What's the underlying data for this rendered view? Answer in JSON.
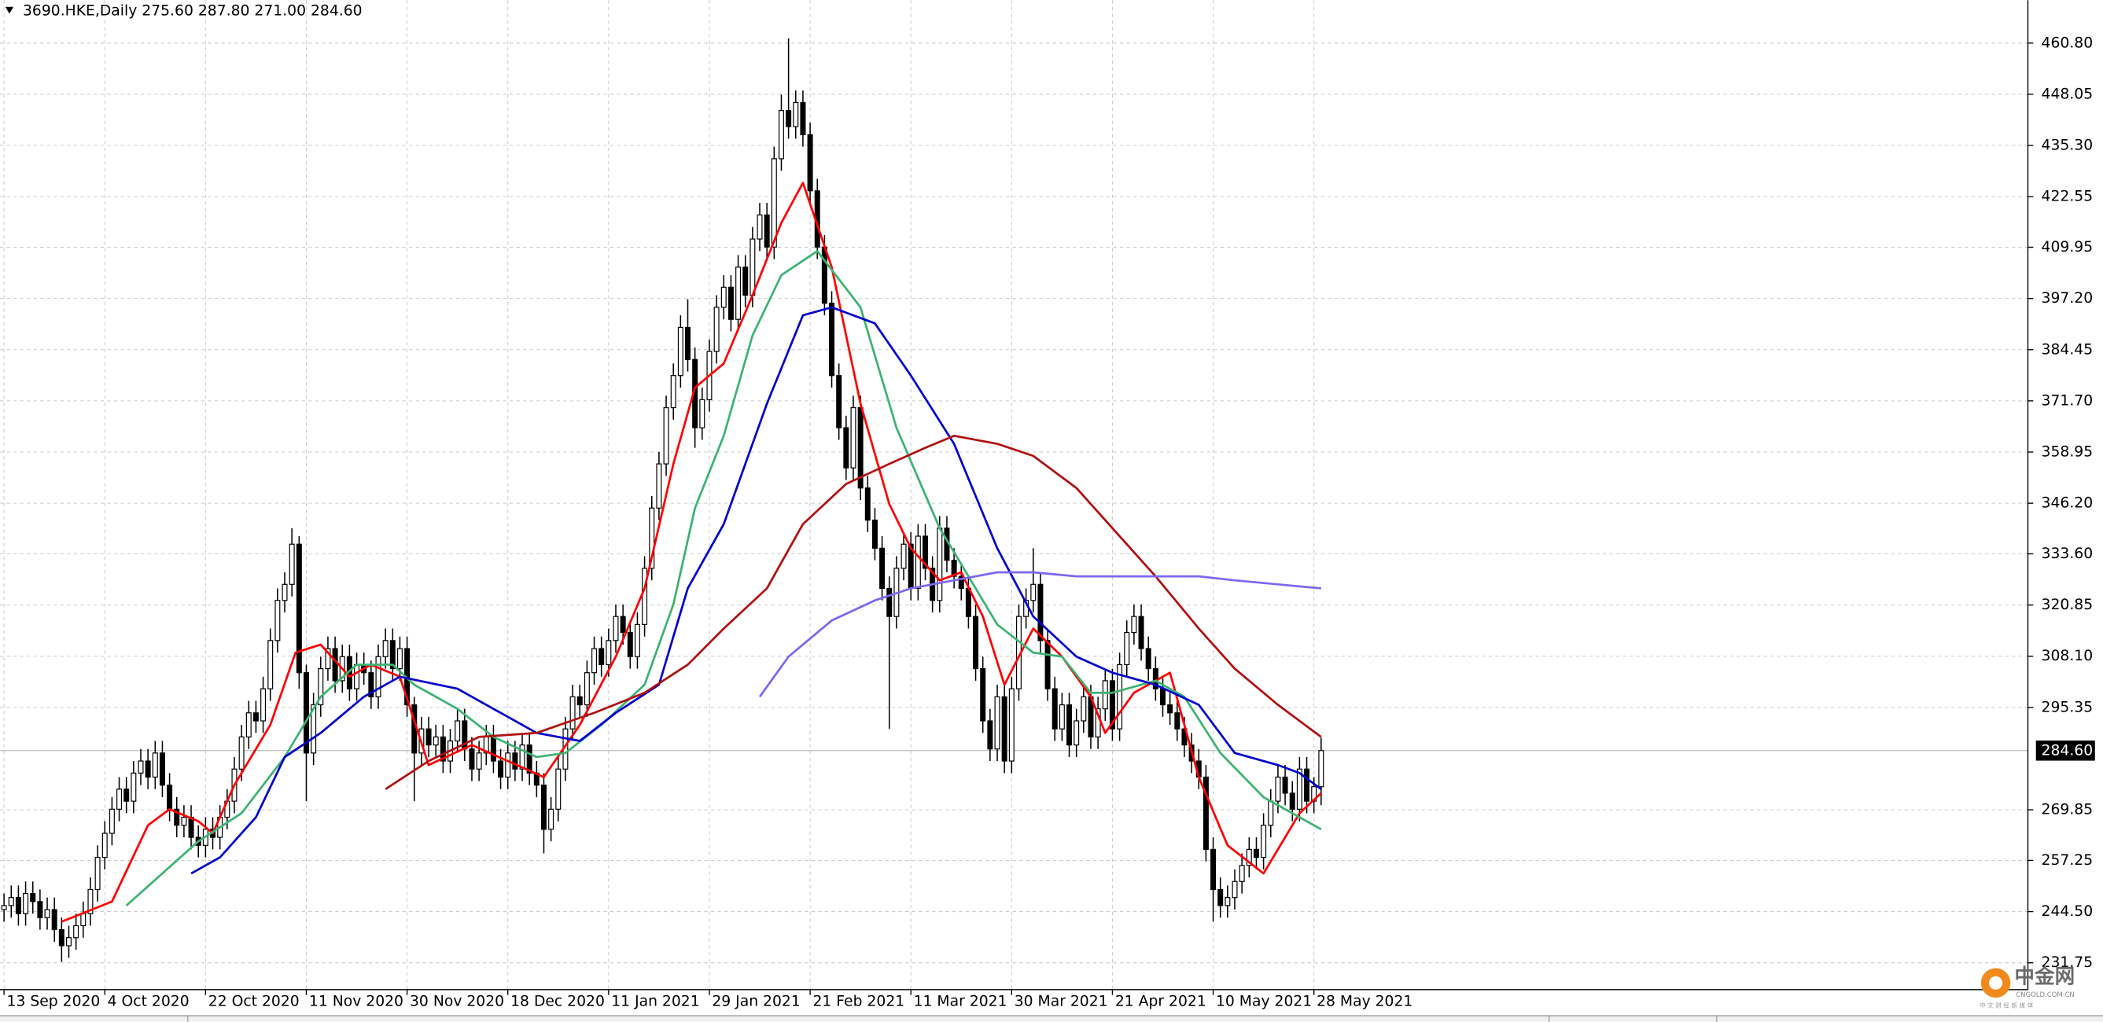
{
  "chart_data": {
    "type": "candlestick",
    "header": "3690.HKE,Daily  275.60 287.80 271.00 284.60",
    "up_color": "#ffffff",
    "down_color": "#000000",
    "grid": true,
    "xlim": [
      -0.56,
      281.2
    ],
    "ylim": [
      225.07,
      471.48
    ],
    "xticks": [
      {
        "value": 0,
        "label": "13 Sep 2020"
      },
      {
        "value": 14,
        "label": "4 Oct 2020"
      },
      {
        "value": 28,
        "label": "22 Oct 2020"
      },
      {
        "value": 42,
        "label": "11 Nov 2020"
      },
      {
        "value": 56,
        "label": "30 Nov 2020"
      },
      {
        "value": 70,
        "label": "18 Dec 2020"
      },
      {
        "value": 84,
        "label": "11 Jan 2021"
      },
      {
        "value": 98,
        "label": "29 Jan 2021"
      },
      {
        "value": 112,
        "label": "21 Feb 2021"
      },
      {
        "value": 126,
        "label": "11 Mar 2021"
      },
      {
        "value": 140,
        "label": "30 Mar 2021"
      },
      {
        "value": 154,
        "label": "21 Apr 2021"
      },
      {
        "value": 168,
        "label": "10 May 2021"
      },
      {
        "value": 182,
        "label": "28 May 2021"
      }
    ],
    "yticks": [
      {
        "value": 460.8,
        "label": "460.80"
      },
      {
        "value": 448.05,
        "label": "448.05"
      },
      {
        "value": 435.3,
        "label": "435.30"
      },
      {
        "value": 422.55,
        "label": "422.55"
      },
      {
        "value": 409.95,
        "label": "409.95"
      },
      {
        "value": 397.2,
        "label": "397.20"
      },
      {
        "value": 384.45,
        "label": "384.45"
      },
      {
        "value": 371.7,
        "label": "371.70"
      },
      {
        "value": 358.95,
        "label": "358.95"
      },
      {
        "value": 346.2,
        "label": "346.20"
      },
      {
        "value": 333.6,
        "label": "333.60"
      },
      {
        "value": 320.85,
        "label": "320.85"
      },
      {
        "value": 308.1,
        "label": "308.10"
      },
      {
        "value": 295.35,
        "label": "295.35"
      },
      {
        "value": 269.85,
        "label": "269.85"
      },
      {
        "value": 257.25,
        "label": "257.25"
      },
      {
        "value": 244.5,
        "label": "244.50"
      },
      {
        "value": 231.75,
        "label": "231.75"
      }
    ],
    "current_price": {
      "value": 284.6,
      "label": "284.60"
    },
    "open": [
      245,
      246,
      248,
      244,
      249,
      247,
      243,
      245,
      240,
      236,
      238,
      241,
      244,
      250,
      258,
      264,
      270,
      275,
      272,
      279,
      282,
      278,
      284,
      276,
      270,
      266,
      268,
      263,
      261,
      265,
      263,
      268,
      272,
      280,
      288,
      294,
      292,
      300,
      312,
      322,
      326,
      336,
      304,
      284,
      296,
      305,
      310,
      302,
      308,
      300,
      306,
      304,
      298,
      308,
      312,
      305,
      310,
      296,
      284,
      290,
      286,
      288,
      282,
      287,
      292,
      285,
      280,
      284,
      288,
      282,
      278,
      284,
      280,
      286,
      279,
      276,
      265,
      270,
      280,
      290,
      298,
      296,
      304,
      310,
      306,
      312,
      318,
      314,
      308,
      316,
      330,
      345,
      356,
      370,
      378,
      390,
      382,
      365,
      372,
      384,
      395,
      400,
      392,
      405,
      398,
      412,
      418,
      410,
      432,
      444,
      440,
      446,
      438,
      424,
      410,
      396,
      378,
      365,
      355,
      370,
      350,
      342,
      335,
      325,
      318,
      330,
      336,
      325,
      338,
      330,
      322,
      340,
      332,
      328,
      325,
      318,
      305,
      292,
      285,
      298,
      282,
      300,
      318,
      322,
      326,
      312,
      300,
      290,
      296,
      286,
      292,
      298,
      288,
      295,
      302,
      290,
      306,
      314,
      318,
      310,
      305,
      300,
      296,
      294,
      290,
      286,
      282,
      278,
      260,
      250,
      246,
      248,
      252,
      256,
      260,
      258,
      266,
      272,
      278,
      274,
      270,
      280,
      272,
      275.6
    ],
    "high": [
      249,
      251,
      251,
      252,
      252,
      250,
      248,
      248,
      243,
      241,
      244,
      247,
      253,
      261,
      267,
      273,
      278,
      278,
      282,
      285,
      285,
      287,
      287,
      279,
      273,
      271,
      271,
      266,
      268,
      268,
      271,
      275,
      283,
      291,
      297,
      297,
      303,
      315,
      325,
      329,
      340,
      338,
      306,
      299,
      308,
      313,
      313,
      311,
      311,
      309,
      309,
      307,
      311,
      315,
      315,
      313,
      313,
      298,
      293,
      293,
      291,
      291,
      290,
      295,
      295,
      288,
      287,
      291,
      291,
      285,
      287,
      287,
      289,
      289,
      282,
      279,
      273,
      283,
      293,
      301,
      301,
      307,
      313,
      313,
      315,
      321,
      321,
      317,
      319,
      333,
      348,
      359,
      373,
      381,
      393,
      397,
      385,
      375,
      387,
      398,
      403,
      403,
      408,
      408,
      415,
      421,
      421,
      435,
      448,
      462,
      449,
      449,
      441,
      427,
      413,
      399,
      381,
      368,
      373,
      373,
      353,
      345,
      338,
      328,
      333,
      339,
      339,
      341,
      341,
      333,
      343,
      343,
      335,
      331,
      328,
      321,
      308,
      295,
      301,
      301,
      303,
      321,
      325,
      335,
      329,
      315,
      303,
      299,
      299,
      295,
      301,
      301,
      298,
      305,
      305,
      309,
      317,
      321,
      321,
      313,
      308,
      303,
      299,
      297,
      293,
      289,
      285,
      281,
      263,
      253,
      251,
      255,
      259,
      263,
      263,
      269,
      275,
      281,
      281,
      277,
      283,
      283,
      278,
      287.8
    ],
    "low": [
      242,
      243,
      241,
      241,
      244,
      240,
      240,
      237,
      232,
      233,
      235,
      238,
      241,
      247,
      255,
      261,
      267,
      269,
      269,
      276,
      275,
      275,
      273,
      267,
      263,
      263,
      260,
      258,
      258,
      260,
      260,
      265,
      269,
      277,
      285,
      289,
      289,
      297,
      309,
      319,
      323,
      300,
      272,
      281,
      293,
      302,
      299,
      299,
      297,
      297,
      301,
      295,
      295,
      305,
      302,
      302,
      293,
      272,
      281,
      283,
      283,
      279,
      279,
      284,
      282,
      277,
      277,
      281,
      279,
      275,
      275,
      277,
      277,
      276,
      273,
      259,
      262,
      267,
      277,
      287,
      293,
      293,
      301,
      303,
      303,
      309,
      311,
      305,
      305,
      313,
      327,
      342,
      353,
      367,
      375,
      379,
      360,
      362,
      369,
      381,
      392,
      389,
      389,
      395,
      395,
      409,
      407,
      407,
      429,
      437,
      437,
      435,
      421,
      407,
      393,
      375,
      362,
      352,
      352,
      347,
      339,
      332,
      322,
      290,
      315,
      327,
      322,
      322,
      327,
      319,
      319,
      329,
      325,
      322,
      315,
      302,
      289,
      282,
      282,
      279,
      279,
      297,
      315,
      319,
      309,
      297,
      287,
      287,
      283,
      283,
      289,
      285,
      285,
      292,
      287,
      287,
      303,
      311,
      307,
      302,
      297,
      293,
      291,
      287,
      283,
      279,
      275,
      257,
      242,
      243,
      243,
      245,
      249,
      253,
      255,
      255,
      263,
      269,
      271,
      267,
      267,
      269,
      269,
      271
    ],
    "close": [
      246,
      248,
      244,
      249,
      247,
      243,
      245,
      240,
      236,
      238,
      241,
      244,
      250,
      258,
      264,
      270,
      275,
      272,
      279,
      282,
      278,
      284,
      276,
      270,
      266,
      268,
      263,
      261,
      265,
      263,
      268,
      272,
      280,
      288,
      294,
      292,
      300,
      312,
      322,
      326,
      336,
      304,
      284,
      296,
      305,
      310,
      302,
      308,
      300,
      306,
      304,
      298,
      308,
      312,
      305,
      310,
      296,
      284,
      290,
      286,
      288,
      282,
      287,
      292,
      285,
      280,
      284,
      288,
      282,
      278,
      284,
      280,
      286,
      279,
      276,
      265,
      270,
      280,
      290,
      298,
      296,
      304,
      310,
      306,
      312,
      318,
      314,
      308,
      316,
      330,
      345,
      356,
      370,
      378,
      390,
      382,
      365,
      372,
      384,
      395,
      400,
      392,
      405,
      398,
      412,
      418,
      410,
      432,
      444,
      440,
      446,
      438,
      424,
      410,
      396,
      378,
      365,
      355,
      370,
      350,
      342,
      335,
      325,
      318,
      330,
      336,
      325,
      338,
      330,
      322,
      340,
      332,
      328,
      325,
      318,
      305,
      292,
      285,
      298,
      282,
      300,
      318,
      322,
      326,
      312,
      300,
      290,
      296,
      286,
      292,
      298,
      288,
      295,
      302,
      290,
      306,
      314,
      318,
      310,
      305,
      300,
      296,
      294,
      290,
      286,
      282,
      278,
      260,
      250,
      246,
      248,
      252,
      256,
      260,
      258,
      266,
      272,
      278,
      274,
      270,
      280,
      272,
      275.6,
      284.6
    ],
    "series": [
      {
        "color": "#ff0000",
        "x": [
          8,
          15,
          20,
          23,
          27,
          29,
          32,
          37,
          40.5,
          44,
          48,
          51,
          55,
          59,
          65,
          70,
          75,
          80,
          85,
          89,
          93,
          96,
          100,
          104,
          108,
          111,
          115,
          119,
          123,
          126,
          130,
          133,
          136,
          139,
          143,
          147,
          151,
          153,
          157,
          162,
          166,
          170,
          175,
          180,
          183
        ],
        "values": [
          242,
          247,
          266,
          270,
          267,
          264,
          276,
          291,
          309,
          311,
          303,
          306,
          303,
          281,
          286,
          282,
          278,
          291,
          308,
          325,
          356,
          375,
          381,
          398,
          416,
          426,
          405,
          371,
          346,
          335,
          327,
          329,
          318,
          301,
          315,
          308,
          298,
          289,
          299,
          304,
          278,
          261,
          254,
          269,
          274
        ]
      },
      {
        "color": "#3cb371",
        "x": [
          17,
          22,
          27,
          33,
          39,
          44,
          49,
          54,
          57,
          63,
          68,
          74,
          78,
          83,
          89,
          93,
          96,
          100,
          104,
          108,
          113,
          119,
          124,
          130,
          134,
          138,
          143,
          147,
          151,
          154,
          160,
          164,
          169,
          175,
          180,
          183
        ],
        "values": [
          246,
          254,
          262,
          269,
          283,
          298,
          306,
          306,
          301,
          295,
          288,
          283,
          284,
          291,
          301,
          321,
          345,
          363,
          388,
          403,
          409,
          395,
          365,
          340,
          328,
          316,
          309,
          308,
          299,
          299,
          302,
          298,
          284,
          273,
          268,
          265
        ]
      },
      {
        "color": "#0000cd",
        "x": [
          26,
          30,
          35,
          39,
          44,
          50,
          55,
          63,
          68,
          74,
          80,
          85,
          91,
          95,
          100,
          106,
          111,
          115,
          121,
          126,
          132,
          138,
          143,
          149,
          154,
          160,
          166,
          171,
          177,
          180,
          183
        ],
        "values": [
          254,
          258,
          268,
          283,
          289,
          298,
          303,
          300,
          295,
          289,
          287,
          294,
          301,
          325,
          341,
          371,
          393,
          395,
          391,
          378,
          361,
          335,
          318,
          308,
          304,
          301,
          296,
          284,
          281,
          279,
          275
        ]
      },
      {
        "color": "#b01010",
        "x": [
          53,
          59,
          66,
          74,
          82,
          89,
          95,
          100,
          106,
          111,
          117,
          123,
          128,
          132,
          138,
          143,
          149,
          154,
          160,
          166,
          171,
          177,
          183
        ],
        "values": [
          275,
          282,
          288,
          289,
          294,
          299,
          306,
          315,
          325,
          341,
          351,
          356,
          360,
          363,
          361,
          358,
          350,
          340,
          328,
          315,
          305,
          296,
          288
        ]
      },
      {
        "color": "#7b68ee",
        "x": [
          105,
          109,
          115,
          121,
          126,
          132,
          138,
          143,
          149,
          154,
          160,
          166,
          171,
          177,
          183
        ],
        "values": [
          298,
          308,
          317,
          322,
          325,
          327,
          329,
          329,
          328,
          328,
          328,
          328,
          327,
          326,
          325
        ]
      }
    ]
  },
  "watermark": {
    "name": "中金网",
    "site": "CNGOLD.COM.CN",
    "slogan": "中 文 财 经 新 媒 体"
  }
}
